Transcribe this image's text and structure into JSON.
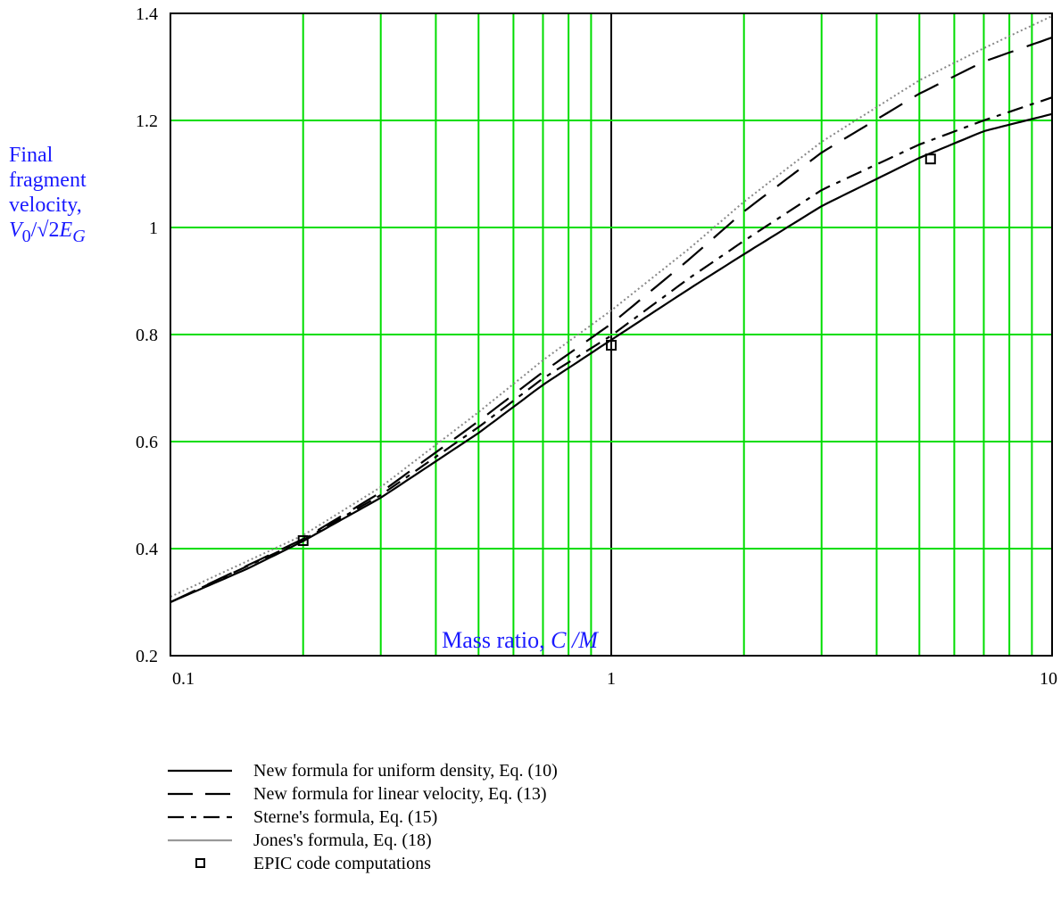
{
  "chart_data": {
    "type": "line",
    "title": "",
    "xscale": "log",
    "xlim": [
      0.1,
      10
    ],
    "ylim": [
      0.2,
      1.4
    ],
    "grid": true,
    "grid_color": "#00dd00",
    "x_ticks": [
      "0.1",
      "1",
      "10"
    ],
    "y_ticks": [
      "0.2",
      "0.4",
      "0.6",
      "0.8",
      "1",
      "1.2",
      "1.4"
    ],
    "xlabel": {
      "prefix": "Mass ratio, ",
      "var": "C /M"
    },
    "ylabel": {
      "lines": [
        "Final",
        "fragment",
        "velocity,"
      ],
      "formula": {
        "v": "V",
        "sub0": "0",
        "slash": "/",
        "sqrt": "√",
        "two": "2",
        "e": "E",
        "subg": "G"
      }
    },
    "series": [
      {
        "name": "New formula for uniform density, Eq. (10)",
        "style": "solid",
        "color": "#000000",
        "x": [
          0.1,
          0.15,
          0.2,
          0.3,
          0.5,
          0.7,
          1,
          1.5,
          2,
          3,
          5,
          7,
          10
        ],
        "y": [
          0.3,
          0.363,
          0.414,
          0.495,
          0.616,
          0.706,
          0.79,
          0.885,
          0.95,
          1.04,
          1.13,
          1.18,
          1.212
        ]
      },
      {
        "name": "New formula for linear velocity, Eq. (13)",
        "style": "dashed",
        "color": "#000000",
        "x": [
          0.1,
          0.2,
          0.3,
          0.5,
          0.7,
          1,
          1.5,
          2,
          3,
          5,
          7,
          10
        ],
        "y": [
          0.3,
          0.418,
          0.505,
          0.638,
          0.73,
          0.82,
          0.94,
          1.03,
          1.14,
          1.25,
          1.31,
          1.355
        ]
      },
      {
        "name": "Sterne's formula, Eq. (15)",
        "style": "dashdot",
        "color": "#000000",
        "x": [
          0.1,
          0.2,
          0.3,
          0.5,
          0.7,
          1,
          1.5,
          2,
          3,
          5,
          7,
          10
        ],
        "y": [
          0.3,
          0.416,
          0.5,
          0.627,
          0.718,
          0.798,
          0.905,
          0.975,
          1.07,
          1.155,
          1.2,
          1.243
        ]
      },
      {
        "name": "Jones's formula, Eq. (18)",
        "style": "dotted",
        "color": "#888888",
        "x": [
          0.1,
          0.2,
          0.3,
          0.5,
          0.7,
          1,
          1.5,
          2,
          3,
          5,
          7,
          10
        ],
        "y": [
          0.31,
          0.425,
          0.515,
          0.655,
          0.752,
          0.845,
          0.96,
          1.048,
          1.16,
          1.275,
          1.335,
          1.395
        ]
      }
    ],
    "points": {
      "name": "EPIC code computations",
      "x": [
        0.2,
        1,
        5.3
      ],
      "y": [
        0.415,
        0.78,
        1.128
      ]
    }
  },
  "legend_placement": "bottom"
}
